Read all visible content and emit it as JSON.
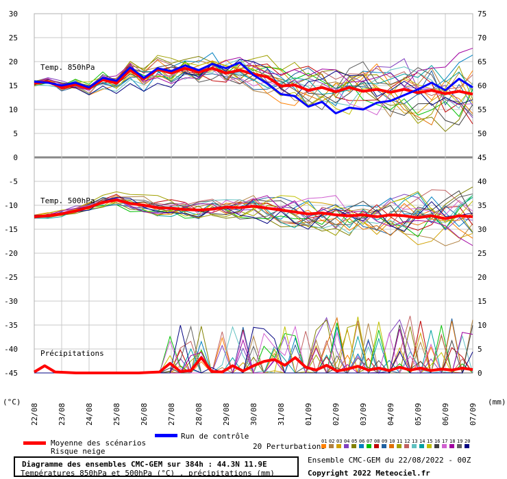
{
  "chart_data": {
    "type": "line",
    "title": "Diagramme des ensembles CMC-GEM sur 384h : 44.3N 11.9E",
    "subtitle": "Températures 850hPa et 500hPa (°C) , précipitations (mm)",
    "left_unit": "(°C)",
    "right_unit": "(mm)",
    "left_ticks": [
      30,
      25,
      20,
      15,
      10,
      5,
      0,
      -5,
      -10,
      -15,
      -20,
      -25,
      -30,
      -35,
      -40,
      -45
    ],
    "right_ticks": [
      75,
      70,
      65,
      60,
      55,
      50,
      45,
      40,
      35,
      30,
      25,
      20,
      15,
      10,
      5,
      0
    ],
    "ylim_temperature": [
      -45,
      30
    ],
    "ylim_precipitation": [
      0,
      75
    ],
    "x_labels": [
      "22/08",
      "23/08",
      "24/08",
      "25/08",
      "26/08",
      "27/08",
      "28/08",
      "29/08",
      "30/08",
      "31/08",
      "01/09",
      "02/09",
      "03/09",
      "04/09",
      "05/09",
      "06/09",
      "07/09"
    ],
    "grid": true,
    "panel_labels": {
      "t850": "Temp. 850hPa",
      "t500": "Temp. 500hPa",
      "precip": "Précipitations"
    },
    "series": [
      {
        "name": "Moyenne des scénarios",
        "color": "#ff0000",
        "panel": "Temp. 850hPa",
        "values": [
          15.5,
          15.8,
          14.6,
          15.2,
          14.4,
          16.2,
          15.5,
          18.2,
          16.4,
          18.4,
          17.6,
          18.6,
          17.8,
          18.6,
          17.6,
          18.2,
          17.4,
          16.8,
          14.9,
          15.1,
          14.0,
          14.6,
          13.7,
          14.6,
          13.8,
          14.2,
          13.6,
          14.2,
          13.5,
          14.0,
          13.3,
          13.8,
          13.2
        ]
      },
      {
        "name": "Run de contrôle",
        "color": "#0000ff",
        "panel": "Temp. 850hPa",
        "values": [
          15.8,
          15.6,
          15.0,
          15.6,
          14.6,
          16.6,
          16.0,
          18.8,
          16.6,
          18.6,
          18.0,
          19.2,
          18.2,
          19.5,
          18.6,
          19.8,
          17.2,
          15.4,
          13.2,
          12.8,
          10.6,
          11.6,
          9.2,
          10.4,
          10.0,
          11.4,
          11.8,
          13.0,
          14.2,
          15.6,
          14.0,
          16.4,
          14.6
        ]
      },
      {
        "name": "Moyenne des scénarios",
        "color": "#ff0000",
        "panel": "Temp. 500hPa",
        "values": [
          -12.4,
          -12.2,
          -11.8,
          -11.2,
          -10.4,
          -9.4,
          -8.9,
          -9.6,
          -10.0,
          -10.5,
          -10.6,
          -10.9,
          -11.0,
          -10.8,
          -10.4,
          -10.5,
          -10.2,
          -10.6,
          -11.0,
          -11.4,
          -11.8,
          -11.6,
          -12.0,
          -12.2,
          -12.0,
          -12.4,
          -12.0,
          -12.2,
          -12.6,
          -12.2,
          -12.8,
          -12.2,
          -12.4
        ]
      },
      {
        "name": "Moyenne des scénarios",
        "color": "#ff0000",
        "panel": "Précipitations",
        "values": [
          0.2,
          1.5,
          0.2,
          0.1,
          0.0,
          0.0,
          0.0,
          0.0,
          0.0,
          0.0,
          0.0,
          0.1,
          0.2,
          2.0,
          0.3,
          0.5,
          3.2,
          0.3,
          0.2,
          1.5,
          0.4,
          1.5,
          2.4,
          2.8,
          1.6,
          3.2,
          1.2,
          0.6,
          1.6,
          0.4,
          0.8,
          1.4,
          0.6,
          1.0,
          0.5,
          1.2,
          0.6,
          1.0,
          0.5,
          0.8,
          0.6,
          1.0,
          0.7
        ]
      }
    ],
    "perturbations": {
      "label": "20 Perturbations",
      "numbers": [
        "01",
        "02",
        "03",
        "04",
        "05",
        "06",
        "07",
        "08",
        "09",
        "10",
        "11",
        "12",
        "13",
        "14",
        "15",
        "16",
        "17",
        "18",
        "19",
        "20"
      ],
      "colors": [
        "#ff8000",
        "#b08040",
        "#d0a000",
        "#8040c0",
        "#808000",
        "#0080c0",
        "#00c000",
        "#c00000",
        "#2060a0",
        "#e07000",
        "#a0a000",
        "#c06060",
        "#60c0c0",
        "#00a0a0",
        "#c0c000",
        "#404040",
        "#d060d0",
        "#a000a0",
        "#606060",
        "#000080"
      ]
    }
  },
  "legend": {
    "mean_label": "Moyenne des scénarios",
    "snow_label": "Risque neige",
    "control_label": "Run de contrôle",
    "mean_color": "#ff0000",
    "control_color": "#0000ff"
  },
  "footer": {
    "ensemble_info": "Ensemble CMC-GEM du 22/08/2022 - 00Z",
    "copyright": "Copyright 2022 Meteociel.fr"
  }
}
